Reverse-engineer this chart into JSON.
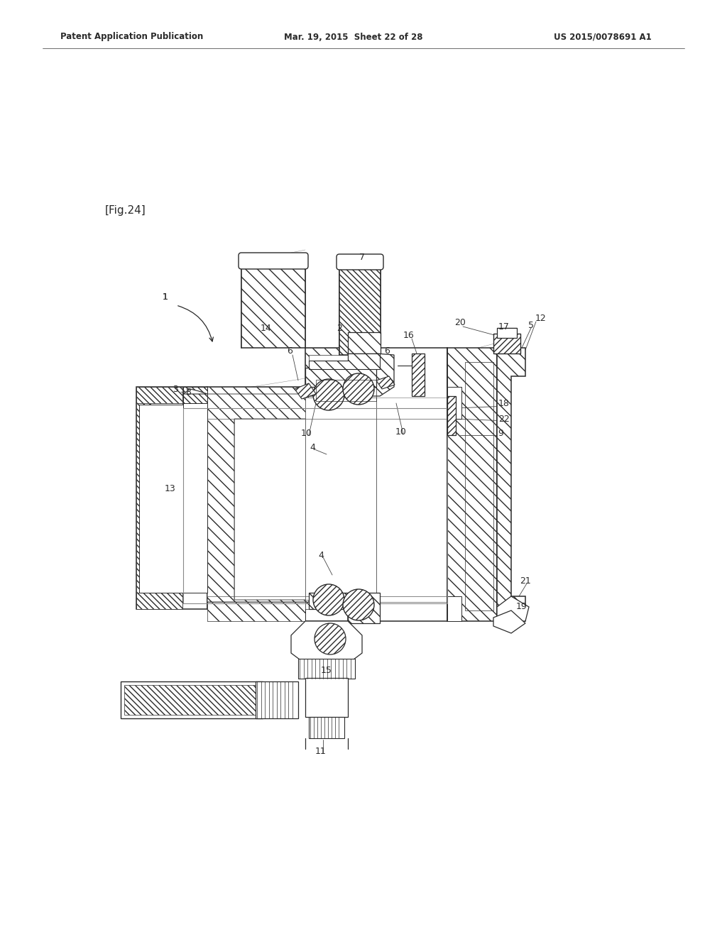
{
  "background_color": "#ffffff",
  "header_left": "Patent Application Publication",
  "header_mid": "Mar. 19, 2015  Sheet 22 of 28",
  "header_right": "US 2015/0078691 A1",
  "fig_label": "[Fig.24]",
  "line_color": "#2a2a2a",
  "page_width": 10.24,
  "page_height": 13.2,
  "dpi": 100
}
